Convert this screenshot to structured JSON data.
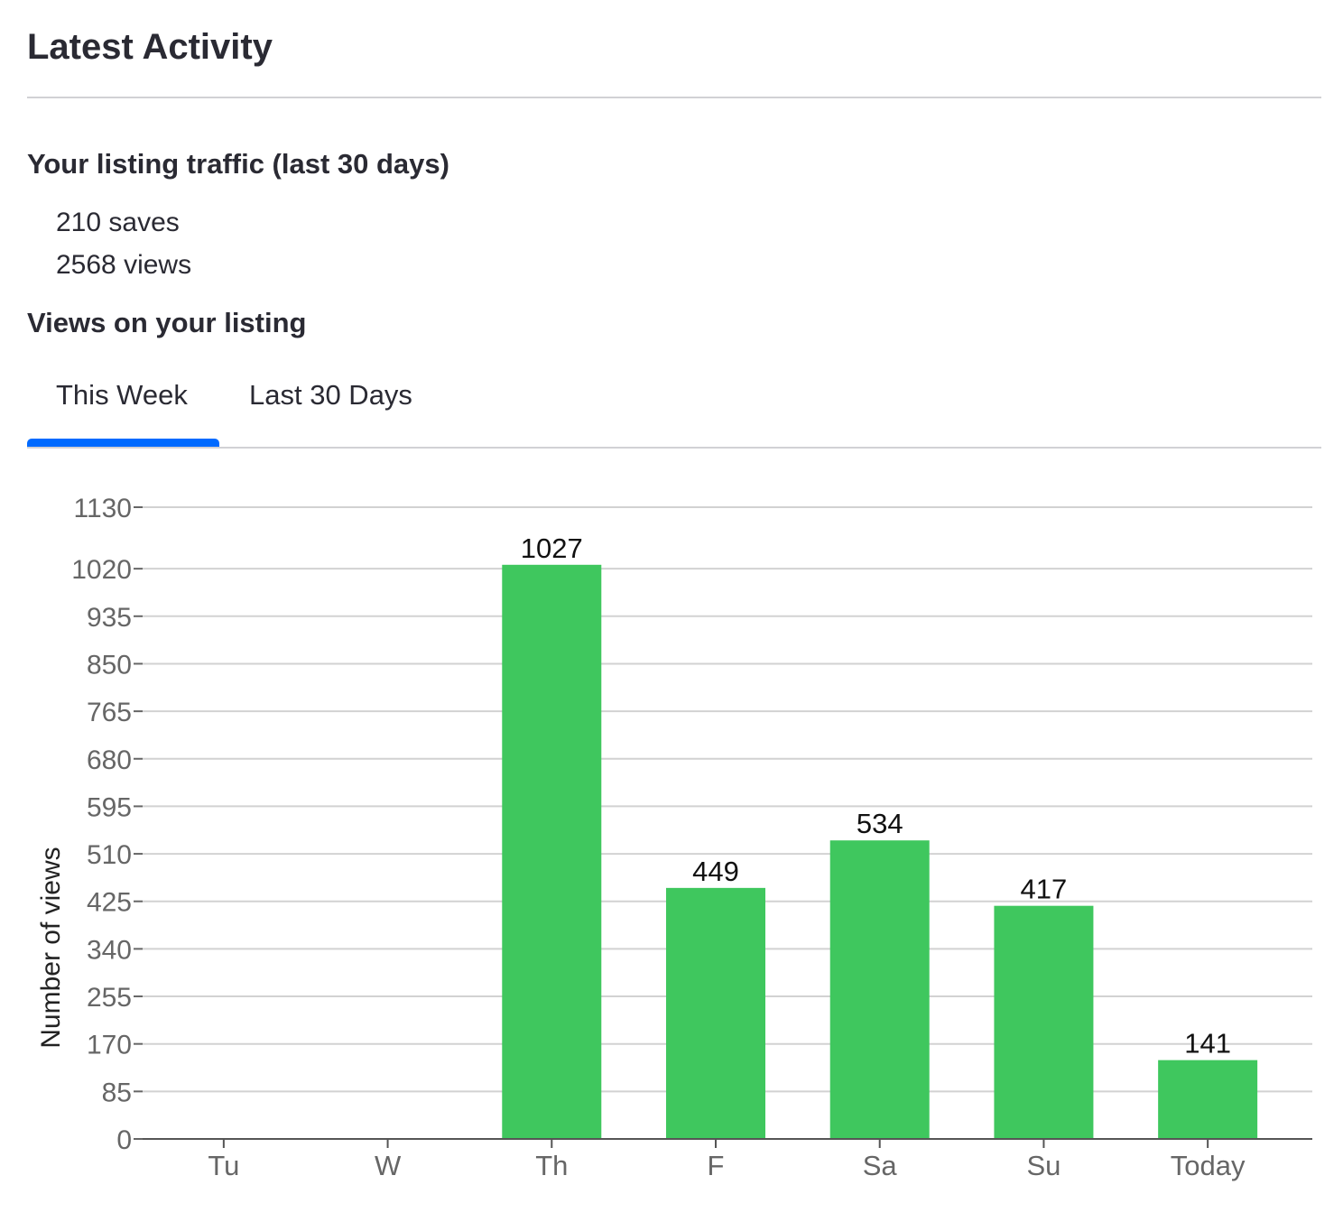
{
  "header": {
    "title": "Latest Activity"
  },
  "traffic": {
    "heading": "Your listing traffic (last 30 days)",
    "saves": "210 saves",
    "views": "2568 views"
  },
  "views_section": {
    "heading": "Views on your listing",
    "tabs": [
      {
        "label": "This Week",
        "active": true
      },
      {
        "label": "Last 30 Days",
        "active": false
      }
    ],
    "accent_color": "#006aff"
  },
  "chart_data": {
    "type": "bar",
    "categories": [
      "Tu",
      "W",
      "Th",
      "F",
      "Sa",
      "Su",
      "Today"
    ],
    "values": [
      0,
      0,
      1027,
      449,
      534,
      417,
      141
    ],
    "data_labels": [
      "",
      "",
      "1027",
      "449",
      "534",
      "417",
      "141"
    ],
    "ylabel": "Number of views",
    "xlabel": "",
    "ylim": [
      0,
      1130
    ],
    "yticks": [
      0,
      85,
      170,
      255,
      340,
      425,
      510,
      595,
      680,
      765,
      850,
      935,
      1020,
      1130
    ],
    "grid": true,
    "bar_color": "#3fc75e"
  }
}
